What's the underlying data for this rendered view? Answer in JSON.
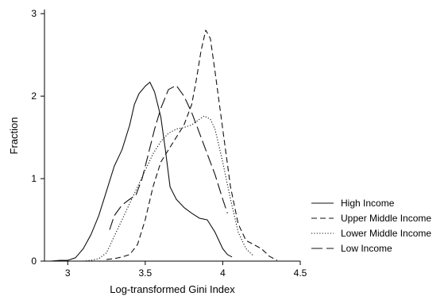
{
  "chart_data": {
    "type": "line",
    "xlabel": "Log-transformed Gini Index",
    "ylabel": "Fraction",
    "xlim": [
      2.85,
      4.5
    ],
    "ylim": [
      0,
      3.05
    ],
    "xticks": [
      "3",
      "3.5",
      "4",
      "4.5"
    ],
    "yticks": [
      "0",
      "1",
      "2",
      "3"
    ],
    "legend_position": "right",
    "series": [
      {
        "name": "High Income",
        "dash": "solid",
        "points": [
          [
            2.89,
            0.0
          ],
          [
            2.95,
            0.01
          ],
          [
            3.0,
            0.01
          ],
          [
            3.05,
            0.04
          ],
          [
            3.1,
            0.15
          ],
          [
            3.15,
            0.32
          ],
          [
            3.2,
            0.55
          ],
          [
            3.25,
            0.85
          ],
          [
            3.3,
            1.15
          ],
          [
            3.35,
            1.35
          ],
          [
            3.4,
            1.65
          ],
          [
            3.43,
            1.9
          ],
          [
            3.46,
            2.03
          ],
          [
            3.5,
            2.12
          ],
          [
            3.53,
            2.17
          ],
          [
            3.56,
            2.05
          ],
          [
            3.6,
            1.75
          ],
          [
            3.63,
            1.35
          ],
          [
            3.66,
            0.9
          ],
          [
            3.7,
            0.75
          ],
          [
            3.75,
            0.65
          ],
          [
            3.8,
            0.58
          ],
          [
            3.85,
            0.52
          ],
          [
            3.9,
            0.5
          ],
          [
            3.95,
            0.35
          ],
          [
            4.0,
            0.15
          ],
          [
            4.03,
            0.08
          ],
          [
            4.06,
            0.05
          ]
        ]
      },
      {
        "name": "Upper Middle Income",
        "dash": "medium",
        "points": [
          [
            3.25,
            0.02
          ],
          [
            3.3,
            0.03
          ],
          [
            3.35,
            0.05
          ],
          [
            3.4,
            0.08
          ],
          [
            3.45,
            0.2
          ],
          [
            3.5,
            0.5
          ],
          [
            3.55,
            0.9
          ],
          [
            3.6,
            1.2
          ],
          [
            3.65,
            1.35
          ],
          [
            3.7,
            1.5
          ],
          [
            3.75,
            1.65
          ],
          [
            3.8,
            1.9
          ],
          [
            3.83,
            2.2
          ],
          [
            3.86,
            2.55
          ],
          [
            3.89,
            2.8
          ],
          [
            3.92,
            2.7
          ],
          [
            3.95,
            2.3
          ],
          [
            4.0,
            1.6
          ],
          [
            4.05,
            0.9
          ],
          [
            4.1,
            0.45
          ],
          [
            4.15,
            0.25
          ],
          [
            4.2,
            0.2
          ],
          [
            4.25,
            0.15
          ],
          [
            4.3,
            0.06
          ],
          [
            4.35,
            0.01
          ]
        ]
      },
      {
        "name": "Lower Middle Income",
        "dash": "dotted",
        "points": [
          [
            3.1,
            0.0
          ],
          [
            3.15,
            0.01
          ],
          [
            3.2,
            0.03
          ],
          [
            3.25,
            0.1
          ],
          [
            3.3,
            0.3
          ],
          [
            3.35,
            0.5
          ],
          [
            3.4,
            0.7
          ],
          [
            3.45,
            0.9
          ],
          [
            3.5,
            1.1
          ],
          [
            3.55,
            1.3
          ],
          [
            3.6,
            1.45
          ],
          [
            3.65,
            1.55
          ],
          [
            3.7,
            1.6
          ],
          [
            3.75,
            1.62
          ],
          [
            3.8,
            1.65
          ],
          [
            3.85,
            1.72
          ],
          [
            3.88,
            1.76
          ],
          [
            3.92,
            1.72
          ],
          [
            3.95,
            1.6
          ],
          [
            4.0,
            1.2
          ],
          [
            4.05,
            0.75
          ],
          [
            4.1,
            0.35
          ],
          [
            4.15,
            0.15
          ],
          [
            4.2,
            0.06
          ]
        ]
      },
      {
        "name": "Low Income",
        "dash": "long",
        "points": [
          [
            3.27,
            0.38
          ],
          [
            3.3,
            0.55
          ],
          [
            3.35,
            0.68
          ],
          [
            3.4,
            0.75
          ],
          [
            3.44,
            0.8
          ],
          [
            3.48,
            1.0
          ],
          [
            3.52,
            1.3
          ],
          [
            3.56,
            1.6
          ],
          [
            3.6,
            1.85
          ],
          [
            3.65,
            2.08
          ],
          [
            3.7,
            2.13
          ],
          [
            3.75,
            2.0
          ],
          [
            3.8,
            1.8
          ],
          [
            3.85,
            1.55
          ],
          [
            3.9,
            1.3
          ],
          [
            3.95,
            1.05
          ],
          [
            4.0,
            0.75
          ],
          [
            4.03,
            0.58
          ]
        ]
      }
    ]
  }
}
